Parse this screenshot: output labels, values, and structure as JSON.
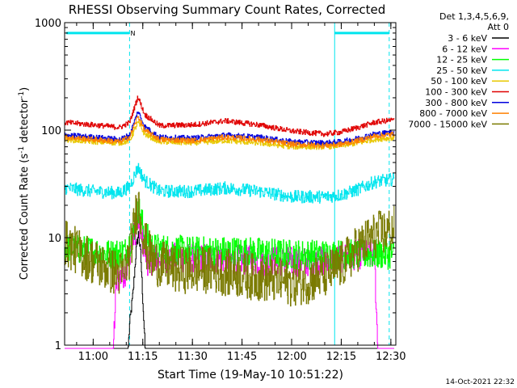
{
  "chart_data": {
    "type": "line",
    "title": "RHESSI Observing Summary Count Rates, Corrected",
    "xlabel": "Start Time (19-May-10 10:51:22)",
    "ylabel": "Corrected Count Rate (s",
    "ylabel_sup1": "-1",
    "ylabel_mid": " detector",
    "ylabel_sup2": "-1",
    "ylabel_end": ")",
    "footer": "14-Oct-2021 22:32",
    "y_scale": "log",
    "ylim": [
      1,
      1000
    ],
    "y_ticks": [
      {
        "value": 1,
        "label": "1"
      },
      {
        "value": 10,
        "label": "10"
      },
      {
        "value": 100,
        "label": "100"
      },
      {
        "value": 1000,
        "label": "1000"
      }
    ],
    "xlim": [
      "10:51:22",
      "12:31:30"
    ],
    "x_ticks": [
      {
        "time": "11:00",
        "label": "11:00"
      },
      {
        "time": "11:15",
        "label": "11:15"
      },
      {
        "time": "11:30",
        "label": "11:30"
      },
      {
        "time": "11:45",
        "label": "11:45"
      },
      {
        "time": "12:00",
        "label": "12:00"
      },
      {
        "time": "12:15",
        "label": "12:15"
      },
      {
        "time": "12:30",
        "label": "12:30"
      }
    ],
    "legend_position": "right",
    "legend_header": [
      "Det 1,3,4,5,6,9,",
      "Att 0"
    ],
    "flags": {
      "color": "#00e5ee",
      "night": [
        {
          "start": "10:51:22",
          "end": "11:11:00"
        },
        {
          "start": "12:13:00",
          "end": "12:29:30"
        }
      ],
      "night_level": 800,
      "saa_label": "N",
      "saa_label_time": "11:12:00",
      "dashed_times": [
        "11:11:00",
        "12:29:30"
      ],
      "solid_times": [
        "12:13:00"
      ]
    },
    "peak_time": "11:13:30",
    "series": [
      {
        "name": "3 - 6 keV",
        "color": "#000000",
        "points": [
          [
            "10:51:22",
            0.9
          ],
          [
            "11:10:30",
            0.9
          ],
          [
            "11:11:00",
            1.6
          ],
          [
            "11:12:00",
            3
          ],
          [
            "11:13:00",
            8
          ],
          [
            "11:13:40",
            11
          ],
          [
            "11:14:20",
            7
          ],
          [
            "11:15:00",
            2.5
          ],
          [
            "11:15:40",
            0.9
          ],
          [
            "12:31:00",
            0.9
          ]
        ]
      },
      {
        "name": "6 - 12 keV",
        "color": "#ff00ff",
        "points": [
          [
            "10:51:22",
            0.9
          ],
          [
            "11:06:00",
            0.9
          ],
          [
            "11:07:00",
            4
          ],
          [
            "11:10:00",
            5
          ],
          [
            "11:11:30",
            9
          ],
          [
            "11:13:30",
            14
          ],
          [
            "11:15:00",
            9
          ],
          [
            "11:16:30",
            6
          ],
          [
            "11:20:00",
            6.5
          ],
          [
            "11:30:00",
            6.5
          ],
          [
            "11:45:00",
            6.2
          ],
          [
            "12:00:00",
            6
          ],
          [
            "12:10:00",
            6
          ],
          [
            "12:20:00",
            7
          ],
          [
            "12:25:00",
            7
          ],
          [
            "12:26:00",
            0.9
          ],
          [
            "12:31:00",
            0.9
          ]
        ]
      },
      {
        "name": "12 - 25 keV",
        "color": "#00ff00",
        "points": [
          [
            "10:51:22",
            8
          ],
          [
            "11:00:00",
            7.5
          ],
          [
            "11:05:00",
            7
          ],
          [
            "11:10:00",
            7.5
          ],
          [
            "11:12:00",
            11
          ],
          [
            "11:13:40",
            19
          ],
          [
            "11:15:30",
            11
          ],
          [
            "11:18:00",
            8
          ],
          [
            "11:30:00",
            7.5
          ],
          [
            "11:45:00",
            7.5
          ],
          [
            "12:00:00",
            7
          ],
          [
            "12:10:00",
            7
          ],
          [
            "12:15:00",
            7
          ],
          [
            "12:20:00",
            7
          ],
          [
            "12:31:00",
            7
          ]
        ]
      },
      {
        "name": "25 - 50 keV",
        "color": "#00e5ee",
        "points": [
          [
            "10:51:22",
            29
          ],
          [
            "11:00:00",
            27
          ],
          [
            "11:08:00",
            26
          ],
          [
            "11:11:00",
            30
          ],
          [
            "11:13:30",
            45
          ],
          [
            "11:15:30",
            34
          ],
          [
            "11:20:00",
            27
          ],
          [
            "11:30:00",
            27
          ],
          [
            "11:40:00",
            29
          ],
          [
            "11:50:00",
            27
          ],
          [
            "12:00:00",
            24
          ],
          [
            "12:10:00",
            24
          ],
          [
            "12:15:00",
            25
          ],
          [
            "12:20:00",
            28
          ],
          [
            "12:25:00",
            33
          ],
          [
            "12:31:00",
            35
          ]
        ]
      },
      {
        "name": "50 - 100 keV",
        "color": "#e8c800",
        "points": [
          [
            "10:51:22",
            82
          ],
          [
            "11:00:00",
            78
          ],
          [
            "11:08:00",
            76
          ],
          [
            "11:11:00",
            80
          ],
          [
            "11:13:30",
            118
          ],
          [
            "11:15:30",
            92
          ],
          [
            "11:20:00",
            78
          ],
          [
            "11:30:00",
            76
          ],
          [
            "11:40:00",
            80
          ],
          [
            "11:50:00",
            76
          ],
          [
            "12:00:00",
            70
          ],
          [
            "12:10:00",
            70
          ],
          [
            "12:15:00",
            72
          ],
          [
            "12:20:00",
            76
          ],
          [
            "12:25:00",
            82
          ],
          [
            "12:31:00",
            85
          ]
        ]
      },
      {
        "name": "100 - 300 keV",
        "color": "#e00000",
        "points": [
          [
            "10:51:22",
            118
          ],
          [
            "11:00:00",
            112
          ],
          [
            "11:08:00",
            106
          ],
          [
            "11:11:00",
            118
          ],
          [
            "11:13:30",
            205
          ],
          [
            "11:15:30",
            140
          ],
          [
            "11:20:00",
            110
          ],
          [
            "11:30:00",
            112
          ],
          [
            "11:40:00",
            122
          ],
          [
            "11:50:00",
            112
          ],
          [
            "12:00:00",
            98
          ],
          [
            "12:10:00",
            92
          ],
          [
            "12:15:00",
            96
          ],
          [
            "12:20:00",
            106
          ],
          [
            "12:25:00",
            118
          ],
          [
            "12:31:00",
            125
          ]
        ]
      },
      {
        "name": "300 - 800 keV",
        "color": "#0000dd",
        "points": [
          [
            "10:51:22",
            90
          ],
          [
            "11:00:00",
            86
          ],
          [
            "11:08:00",
            82
          ],
          [
            "11:11:00",
            90
          ],
          [
            "11:13:30",
            150
          ],
          [
            "11:15:30",
            108
          ],
          [
            "11:20:00",
            86
          ],
          [
            "11:30:00",
            84
          ],
          [
            "11:40:00",
            90
          ],
          [
            "11:50:00",
            86
          ],
          [
            "12:00:00",
            78
          ],
          [
            "12:10:00",
            76
          ],
          [
            "12:15:00",
            78
          ],
          [
            "12:20:00",
            84
          ],
          [
            "12:25:00",
            92
          ],
          [
            "12:31:00",
            96
          ]
        ]
      },
      {
        "name": "800 - 7000 keV",
        "color": "#ff8000",
        "points": [
          [
            "10:51:22",
            86
          ],
          [
            "11:00:00",
            82
          ],
          [
            "11:08:00",
            78
          ],
          [
            "11:11:00",
            86
          ],
          [
            "11:13:30",
            135
          ],
          [
            "11:15:30",
            100
          ],
          [
            "11:20:00",
            82
          ],
          [
            "11:30:00",
            80
          ],
          [
            "11:40:00",
            86
          ],
          [
            "11:50:00",
            82
          ],
          [
            "12:00:00",
            74
          ],
          [
            "12:10:00",
            72
          ],
          [
            "12:15:00",
            74
          ],
          [
            "12:20:00",
            80
          ],
          [
            "12:25:00",
            88
          ],
          [
            "12:31:00",
            92
          ]
        ]
      },
      {
        "name": "7000 - 15000 keV",
        "color": "#7a7a00",
        "points": [
          [
            "10:51:22",
            9
          ],
          [
            "10:55:00",
            7.5
          ],
          [
            "11:00:00",
            6
          ],
          [
            "11:05:00",
            5
          ],
          [
            "11:09:00",
            4.5
          ],
          [
            "11:11:00",
            7
          ],
          [
            "11:13:30",
            22
          ],
          [
            "11:15:30",
            9
          ],
          [
            "11:18:00",
            6
          ],
          [
            "11:25:00",
            5
          ],
          [
            "11:35:00",
            5
          ],
          [
            "11:45:00",
            4.5
          ],
          [
            "11:55:00",
            4
          ],
          [
            "12:00:00",
            3.8
          ],
          [
            "12:05:00",
            4
          ],
          [
            "12:10:00",
            4.5
          ],
          [
            "12:15:00",
            5.5
          ],
          [
            "12:20:00",
            8
          ],
          [
            "12:25:00",
            10.5
          ],
          [
            "12:31:00",
            12
          ]
        ]
      }
    ]
  }
}
